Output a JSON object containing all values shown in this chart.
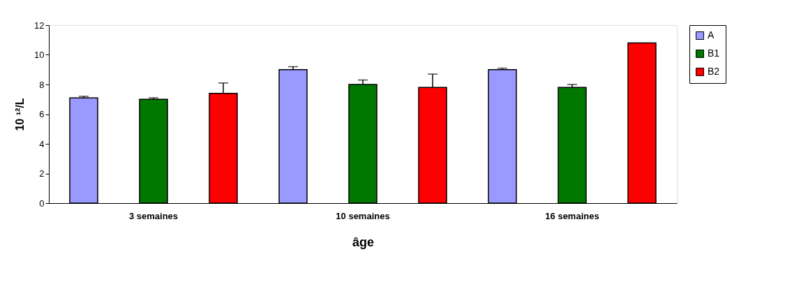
{
  "chart_data": {
    "type": "bar",
    "xlabel": "âge",
    "ylabel": "10 ¹²/L",
    "categories": [
      "3 semaines",
      "10 semaines",
      "16 semaines"
    ],
    "series": [
      {
        "name": "A",
        "color": "#9999ff",
        "values": [
          7.1,
          9.0,
          9.0
        ],
        "errors": [
          [
            7.1,
            7.2
          ],
          [
            9.0,
            9.2
          ],
          [
            9.0,
            9.1
          ]
        ]
      },
      {
        "name": "B1",
        "color": "#007800",
        "values": [
          7.0,
          8.0,
          7.8
        ],
        "errors": [
          [
            7.0,
            7.1
          ],
          [
            8.0,
            8.3
          ],
          [
            7.8,
            8.0
          ]
        ]
      },
      {
        "name": "B2",
        "color": "#ff0000",
        "values": [
          7.4,
          7.8,
          10.8
        ],
        "errors": [
          [
            7.4,
            8.1
          ],
          [
            7.8,
            8.7
          ],
          null
        ]
      }
    ],
    "ylim": [
      0,
      12
    ],
    "yticks": [
      0,
      2,
      4,
      6,
      8,
      10,
      12
    ],
    "grid": false,
    "legend": "right"
  }
}
